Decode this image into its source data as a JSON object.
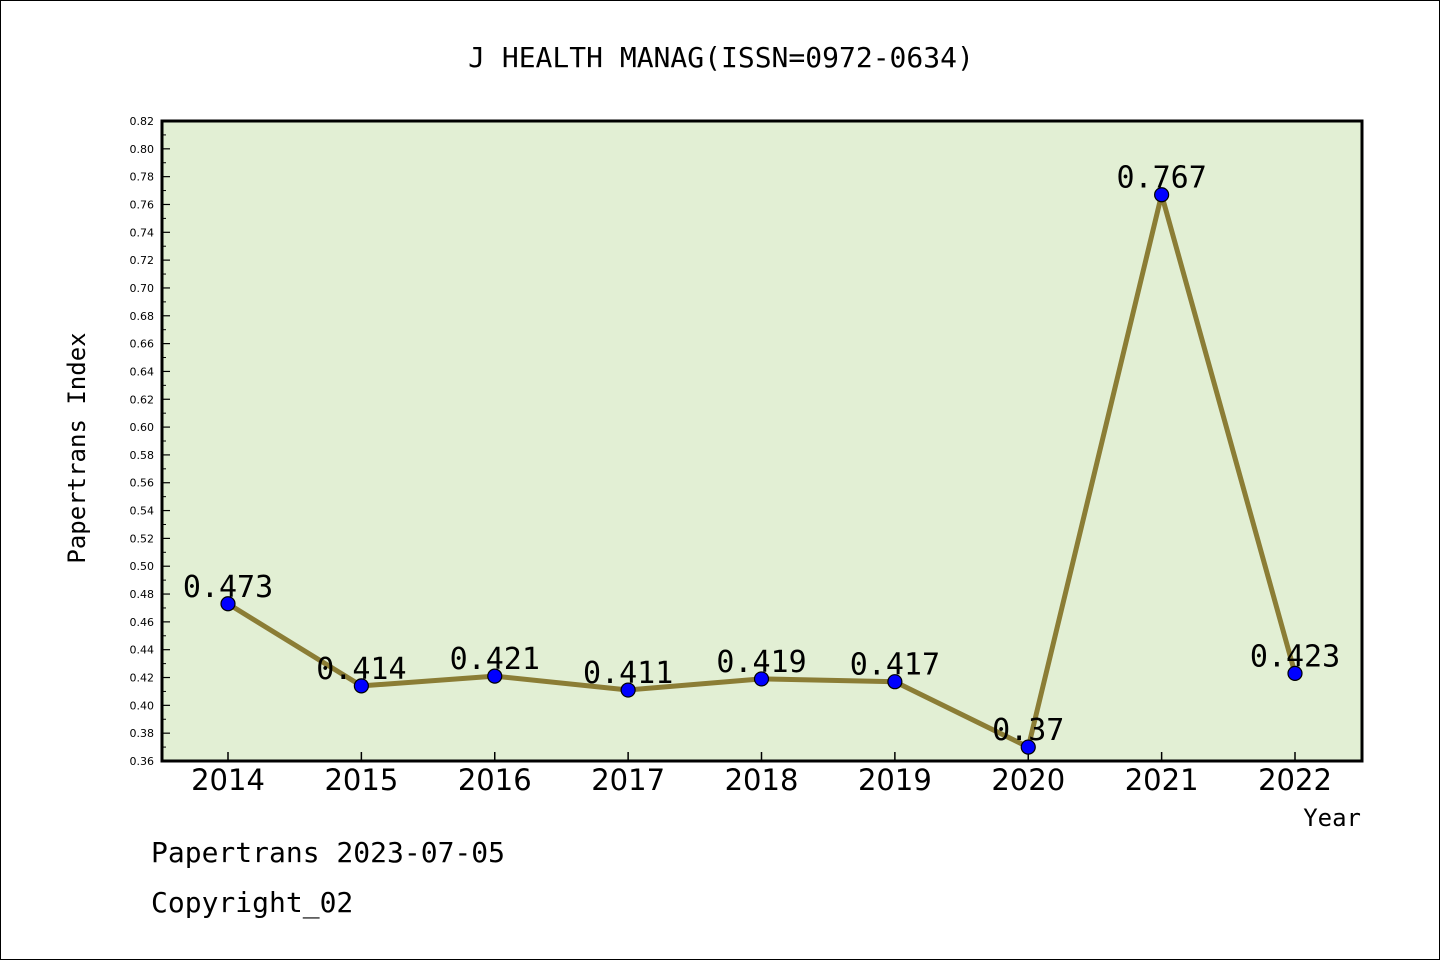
{
  "chart_data": {
    "type": "line",
    "title": "J HEALTH MANAG(ISSN=0972-0634)",
    "xlabel": "Year",
    "ylabel": "Papertrans Index",
    "categories": [
      "2014",
      "2015",
      "2016",
      "2017",
      "2018",
      "2019",
      "2020",
      "2021",
      "2022"
    ],
    "series": [
      {
        "values": [
          0.473,
          0.414,
          0.421,
          0.411,
          0.419,
          0.417,
          0.37,
          0.767,
          0.423
        ],
        "data_labels": [
          "0.473",
          "0.414",
          "0.421",
          "0.411",
          "0.419",
          "0.417",
          "0.37",
          "0.767",
          "0.423"
        ]
      }
    ],
    "ylim": [
      0.36,
      0.82
    ],
    "ytick_step": 0.02,
    "yticks": [
      "0.36",
      "0.38",
      "0.40",
      "0.42",
      "0.44",
      "0.46",
      "0.48",
      "0.50",
      "0.52",
      "0.54",
      "0.56",
      "0.58",
      "0.60",
      "0.62",
      "0.64",
      "0.66",
      "0.68",
      "0.70",
      "0.72",
      "0.74",
      "0.76",
      "0.78",
      "0.80",
      "0.82"
    ],
    "grid": false,
    "legend": "none",
    "colors": {
      "plot_background": "#e2efd4",
      "line": "#8b7d35",
      "marker": "#0000ff",
      "axis": "#000000"
    }
  },
  "footer": {
    "date_line": "Papertrans 2023-07-05",
    "copyright_line": "Copyright_02"
  }
}
